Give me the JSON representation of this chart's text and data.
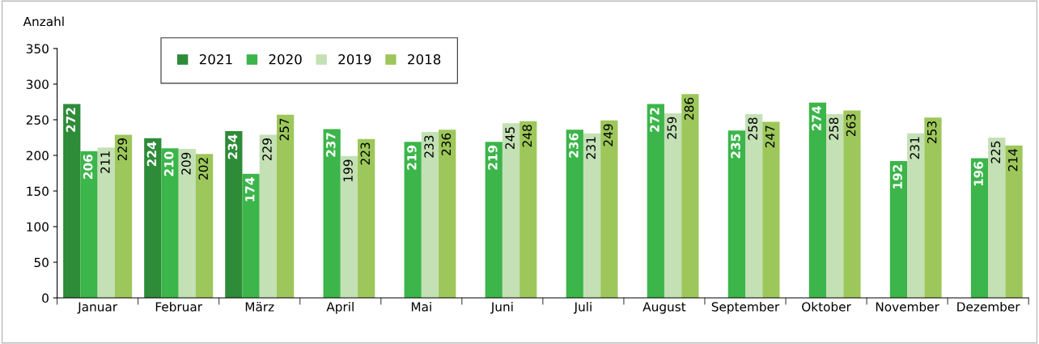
{
  "chart_data": {
    "type": "bar",
    "ylabel": "Anzahl",
    "categories": [
      "Januar",
      "Februar",
      "März",
      "April",
      "Mai",
      "Juni",
      "Juli",
      "August",
      "September",
      "Oktober",
      "November",
      "Dezember"
    ],
    "series": [
      {
        "name": "2021",
        "color": "#2e8b38",
        "values": [
          272,
          224,
          234,
          null,
          null,
          null,
          null,
          null,
          null,
          null,
          null,
          null
        ]
      },
      {
        "name": "2020",
        "color": "#3cb54a",
        "values": [
          206,
          210,
          174,
          237,
          219,
          219,
          236,
          272,
          235,
          274,
          192,
          196
        ]
      },
      {
        "name": "2019",
        "color": "#c4e0b5",
        "values": [
          211,
          209,
          229,
          199,
          233,
          245,
          231,
          259,
          258,
          258,
          231,
          225
        ]
      },
      {
        "name": "2018",
        "color": "#9dc75a",
        "values": [
          229,
          202,
          257,
          223,
          236,
          248,
          249,
          286,
          247,
          263,
          253,
          214
        ]
      }
    ],
    "ylim": [
      0,
      350
    ],
    "yticks": [
      0,
      50,
      100,
      150,
      200,
      250,
      300,
      350
    ],
    "grid": false,
    "legend": "top left",
    "data_labels": true
  }
}
